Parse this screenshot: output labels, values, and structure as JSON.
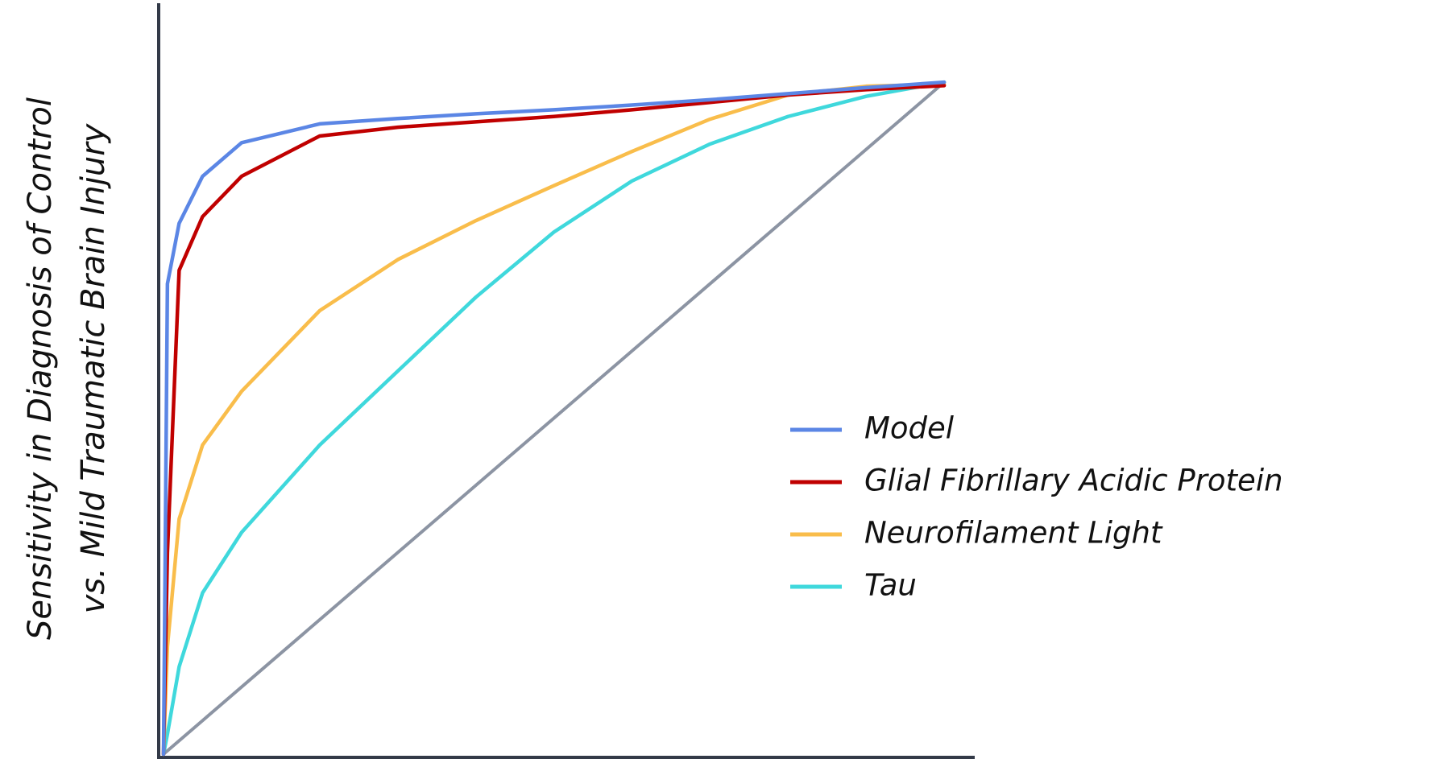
{
  "chart_data": {
    "type": "line",
    "ylabel": [
      "Sensitivity in Diagnosis of Control",
      "vs. Mild Traumatic Brain Injury"
    ],
    "x": [
      0,
      0.005,
      0.02,
      0.05,
      0.1,
      0.2,
      0.3,
      0.4,
      0.5,
      0.6,
      0.7,
      0.8,
      0.9,
      1.0
    ],
    "series": [
      {
        "name": "Model",
        "color": "#5b86e5",
        "values": [
          0,
          0.7,
          0.79,
          0.86,
          0.91,
          0.938,
          0.946,
          0.953,
          0.959,
          0.966,
          0.974,
          0.983,
          0.992,
          1.0
        ]
      },
      {
        "name": "Glial Fibrillary Acidic Protein",
        "color": "#c00000",
        "values": [
          0,
          0.3,
          0.72,
          0.8,
          0.86,
          0.92,
          0.933,
          0.941,
          0.949,
          0.959,
          0.97,
          0.981,
          0.989,
          0.995
        ]
      },
      {
        "name": "Neurofilament Light",
        "color": "#f9bd4b",
        "values": [
          0,
          0.16,
          0.35,
          0.46,
          0.54,
          0.66,
          0.736,
          0.794,
          0.846,
          0.897,
          0.945,
          0.981,
          0.994,
          0.997
        ]
      },
      {
        "name": "Tau",
        "color": "#3fd8dc",
        "values": [
          0,
          0.03,
          0.13,
          0.24,
          0.33,
          0.46,
          0.57,
          0.68,
          0.777,
          0.853,
          0.908,
          0.949,
          0.979,
          1.0
        ]
      }
    ],
    "reference_line": {
      "x": [
        0,
        1
      ],
      "y": [
        0,
        1
      ],
      "color": "#8c94a3"
    },
    "xlim": [
      0,
      1.036
    ],
    "ylim": [
      0,
      1.114
    ],
    "legend": "right"
  }
}
